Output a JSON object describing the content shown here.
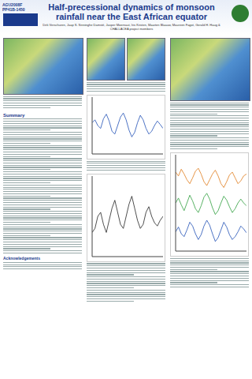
{
  "header": {
    "meeting": "AGU2008F",
    "poster": "PP41B-1450",
    "title": "Half-precessional dynamics of monsoon rainfall near the East African equator",
    "authors": "Dirk Verschuren, Jaap S. Sinninghe Damsté, Jasper Moernaut, Iris Kristen, Maarten Blaauw, Maureen Fagot, Gerald H. Haug & CHALLACEA project members"
  },
  "sections": [
    "Summary",
    "Acknowledgements"
  ],
  "chart_data": [
    {
      "type": "line",
      "x": [
        0,
        1,
        2,
        3,
        4,
        5,
        6,
        7,
        8,
        9,
        10,
        11,
        12,
        13,
        14,
        15,
        16,
        17,
        18,
        19,
        20,
        21,
        22,
        23,
        24,
        25
      ],
      "xlim": [
        0,
        25
      ],
      "ylim": [
        0,
        1
      ],
      "tick_labels": false,
      "grid": false,
      "series": [
        {
          "color": "#1f4fb5",
          "values": [
            0.55,
            0.6,
            0.5,
            0.45,
            0.62,
            0.7,
            0.58,
            0.4,
            0.35,
            0.5,
            0.65,
            0.72,
            0.6,
            0.42,
            0.3,
            0.38,
            0.55,
            0.68,
            0.6,
            0.45,
            0.35,
            0.4,
            0.5,
            0.58,
            0.52,
            0.45
          ]
        }
      ]
    },
    {
      "type": "line",
      "x": [
        0,
        1,
        2,
        3,
        4,
        5,
        6,
        7,
        8,
        9,
        10,
        11,
        12,
        13,
        14,
        15,
        16,
        17,
        18,
        19,
        20,
        21,
        22,
        23,
        24,
        25
      ],
      "xlim": [
        0,
        25
      ],
      "ylim": [
        0,
        1
      ],
      "tick_labels": false,
      "grid": false,
      "series": [
        {
          "color": "#222222",
          "values": [
            0.3,
            0.35,
            0.5,
            0.55,
            0.4,
            0.3,
            0.45,
            0.6,
            0.7,
            0.55,
            0.4,
            0.35,
            0.5,
            0.65,
            0.75,
            0.6,
            0.45,
            0.35,
            0.4,
            0.55,
            0.62,
            0.5,
            0.42,
            0.38,
            0.45,
            0.5
          ]
        }
      ]
    },
    {
      "type": "line",
      "x": [
        0,
        1,
        2,
        3,
        4,
        5,
        6,
        7,
        8,
        9,
        10,
        11,
        12,
        13,
        14,
        15,
        16,
        17,
        18,
        19,
        20,
        21,
        22,
        23,
        24,
        25
      ],
      "xlim": [
        0,
        25
      ],
      "ylim": [
        0,
        1
      ],
      "tick_labels": false,
      "grid": false,
      "series": [
        {
          "color": "#e07b1a",
          "values": [
            0.82,
            0.78,
            0.85,
            0.8,
            0.74,
            0.7,
            0.76,
            0.83,
            0.86,
            0.8,
            0.72,
            0.68,
            0.74,
            0.8,
            0.84,
            0.78,
            0.7,
            0.66,
            0.72,
            0.79,
            0.82,
            0.76,
            0.7,
            0.73,
            0.78,
            0.8
          ]
        },
        {
          "color": "#2e9e3e",
          "values": [
            0.5,
            0.55,
            0.48,
            0.42,
            0.5,
            0.58,
            0.52,
            0.44,
            0.4,
            0.47,
            0.56,
            0.6,
            0.54,
            0.45,
            0.38,
            0.42,
            0.5,
            0.57,
            0.53,
            0.46,
            0.4,
            0.44,
            0.5,
            0.54,
            0.5,
            0.47
          ]
        },
        {
          "color": "#1f4fb5",
          "values": [
            0.2,
            0.25,
            0.18,
            0.15,
            0.22,
            0.3,
            0.26,
            0.18,
            0.12,
            0.17,
            0.26,
            0.32,
            0.27,
            0.18,
            0.1,
            0.14,
            0.22,
            0.3,
            0.25,
            0.17,
            0.12,
            0.15,
            0.2,
            0.26,
            0.23,
            0.19
          ]
        }
      ]
    }
  ]
}
